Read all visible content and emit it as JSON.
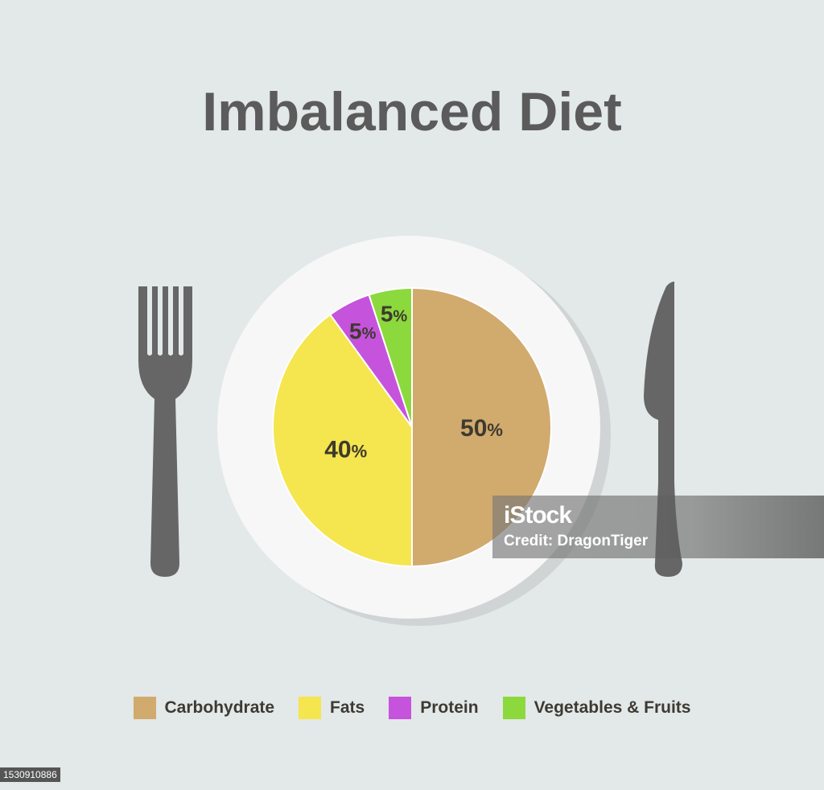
{
  "chart_data": {
    "type": "pie",
    "title": "Imbalanced Diet",
    "slices": [
      {
        "label": "Carbohydrate",
        "value": 50,
        "display": "50",
        "color": "#d1aa6e"
      },
      {
        "label": "Fats",
        "value": 40,
        "display": "40",
        "color": "#f5e54f"
      },
      {
        "label": "Protein",
        "value": 5,
        "display": "5",
        "color": "#c653dc"
      },
      {
        "label": "Vegetables & Fruits",
        "value": 5,
        "display": "5",
        "color": "#8cd93e"
      }
    ],
    "unit": "%",
    "legend_position": "bottom"
  },
  "colors": {
    "background": "#e3e8e8",
    "plate": "#f7f7f7",
    "plate_shadow": "#d0d4d4",
    "cutlery": "#666666",
    "title": "#5b5b5b"
  },
  "icons": [
    "fork-icon",
    "knife-icon",
    "plate-icon"
  ],
  "watermark": {
    "brand": "iStock",
    "credit": "Credit: DragonTiger"
  },
  "image_id": "1530910886"
}
